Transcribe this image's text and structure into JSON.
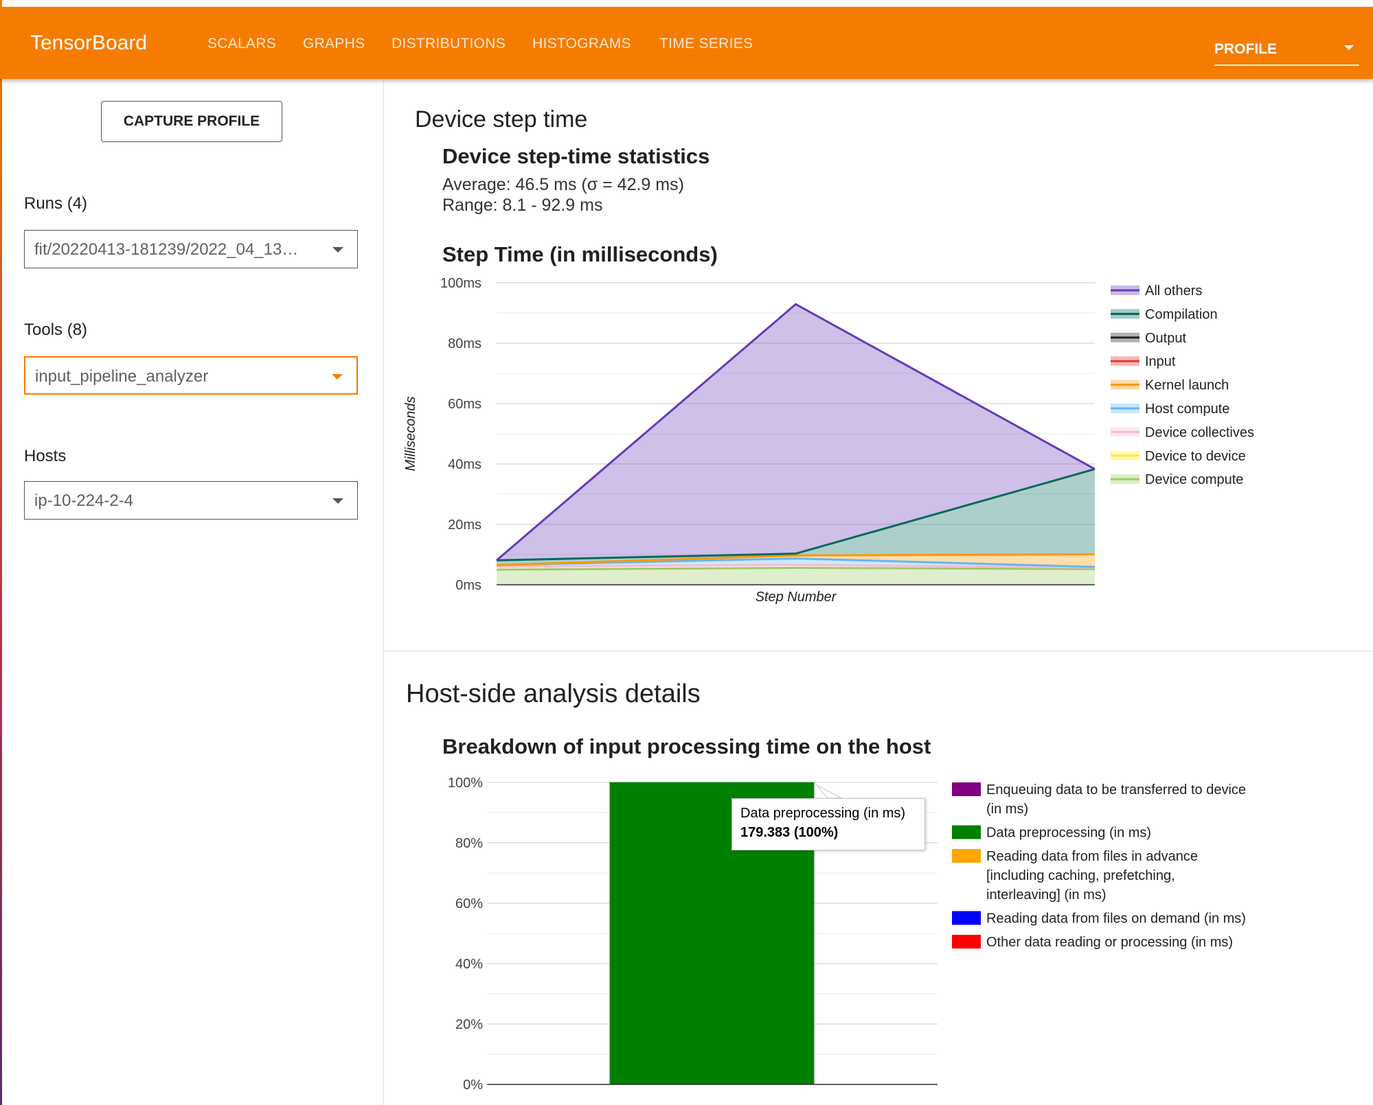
{
  "topbar": {
    "brand": "TensorBoard",
    "tabs": [
      {
        "label": "SCALARS"
      },
      {
        "label": "GRAPHS"
      },
      {
        "label": "DISTRIBUTIONS"
      },
      {
        "label": "HISTOGRAMS"
      },
      {
        "label": "TIME SERIES"
      }
    ],
    "active_plugin": "PROFILE",
    "accent_color": "#f57c00"
  },
  "sidebar": {
    "capture_button": "CAPTURE PROFILE",
    "runs_label": "Runs (4)",
    "runs_value": "fit/20220413-181239/2022_04_13…",
    "tools_label": "Tools (8)",
    "tools_value": "input_pipeline_analyzer",
    "hosts_label": "Hosts",
    "hosts_value": "ip-10-224-2-4"
  },
  "device_section": {
    "title": "Device step time",
    "stats_title": "Device step-time statistics",
    "average": "Average: 46.5 ms (σ = 42.9 ms)",
    "range": "Range: 8.1 - 92.9 ms",
    "chart_title": "Step Time (in milliseconds)"
  },
  "host_section": {
    "title": "Host-side analysis details",
    "chart_title": "Breakdown of input processing time on the host",
    "tooltip_label": "Data preprocessing (in ms)",
    "tooltip_value": "179.383 (100%)"
  },
  "chart_data": [
    {
      "type": "area",
      "stacked": true,
      "title": "Step Time (in milliseconds)",
      "xlabel": "Step Number",
      "ylabel": "Milliseconds",
      "ylim": [
        0,
        100
      ],
      "yticks": [
        "0ms",
        "20ms",
        "40ms",
        "60ms",
        "80ms",
        "100ms"
      ],
      "x": [
        0,
        1,
        2
      ],
      "grid": true,
      "legend_position": "right",
      "series": [
        {
          "name": "Device compute",
          "color": "#9ccc65",
          "values": [
            5.0,
            5.6,
            5.2
          ]
        },
        {
          "name": "Device to device",
          "color": "#ffeb3b",
          "values": [
            0,
            0,
            0
          ]
        },
        {
          "name": "Device collectives",
          "color": "#f8bbd0",
          "values": [
            1.0,
            1.0,
            0.5
          ]
        },
        {
          "name": "Host compute",
          "color": "#64b5f6",
          "values": [
            0.5,
            2.1,
            0.2
          ]
        },
        {
          "name": "Kernel launch",
          "color": "#ff9800",
          "values": [
            0,
            1.0,
            4.2
          ]
        },
        {
          "name": "Input",
          "color": "#e53935",
          "values": [
            0,
            0,
            0
          ]
        },
        {
          "name": "Output",
          "color": "#212121",
          "values": [
            0,
            0,
            0
          ]
        },
        {
          "name": "Compilation",
          "color": "#00695c",
          "values": [
            1.6,
            0.6,
            28.2
          ]
        },
        {
          "name": "All others",
          "color": "#673ab7",
          "values": [
            0,
            82.6,
            0
          ]
        }
      ]
    },
    {
      "type": "bar",
      "stacked": true,
      "title": "Breakdown of input processing time on the host",
      "ylim": [
        0,
        100
      ],
      "yticks": [
        "0%",
        "20%",
        "40%",
        "60%",
        "80%",
        "100%"
      ],
      "categories": [
        ""
      ],
      "legend_position": "right",
      "series": [
        {
          "name": "Enqueuing data to be transferred to device (in ms)",
          "color": "#800080",
          "values": [
            0
          ]
        },
        {
          "name": "Data preprocessing (in ms)",
          "color": "#008000",
          "values": [
            100
          ]
        },
        {
          "name": "Reading data from files in advance [including caching, prefetching, interleaving] (in ms)",
          "color": "#ffa500",
          "values": [
            0
          ]
        },
        {
          "name": "Reading data from files on demand (in ms)",
          "color": "#0000ff",
          "values": [
            0
          ]
        },
        {
          "name": "Other data reading or processing (in ms)",
          "color": "#ff0000",
          "values": [
            0
          ]
        }
      ]
    }
  ]
}
